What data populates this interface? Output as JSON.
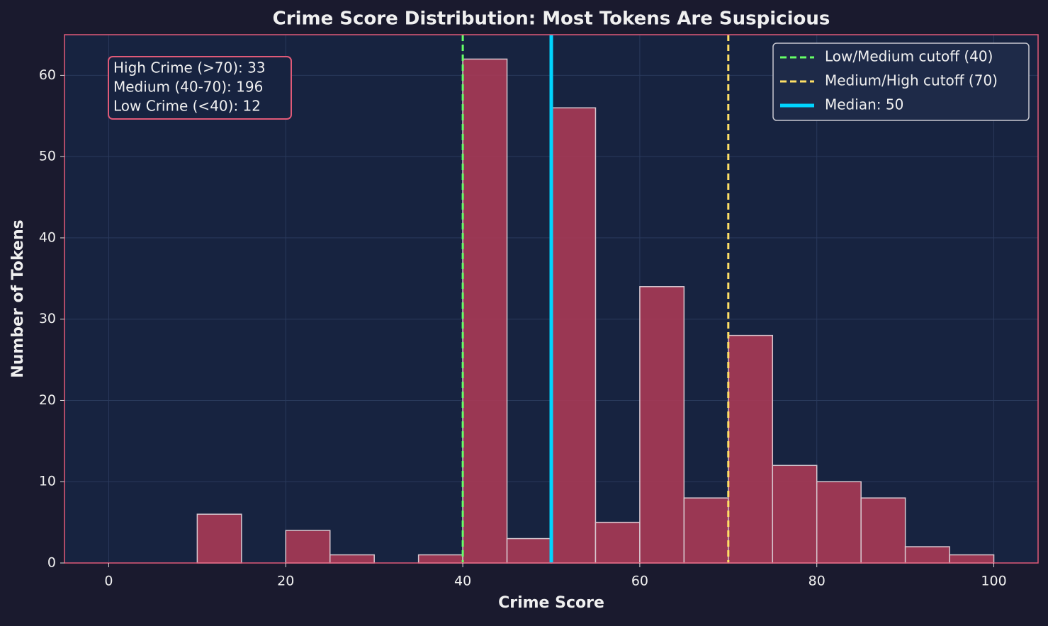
{
  "chart_data": {
    "type": "histogram",
    "title": "Crime Score Distribution: Most Tokens Are Suspicious",
    "x_label": "Crime Score",
    "y_label": "Number of Tokens",
    "bins": [
      0,
      5,
      10,
      15,
      20,
      25,
      30,
      35,
      40,
      45,
      50,
      55,
      60,
      65,
      70,
      75,
      80,
      85,
      90,
      95,
      100
    ],
    "counts": [
      0,
      0,
      6,
      0,
      4,
      1,
      0,
      1,
      62,
      3,
      56,
      5,
      34,
      8,
      28,
      12,
      10,
      8,
      2,
      1
    ],
    "color": "#a83a55",
    "edge_color": "#d8c8d0",
    "xlim": [
      -5,
      105
    ],
    "xticks": [
      0,
      20,
      40,
      60,
      80,
      100
    ],
    "ylim": [
      0,
      65
    ],
    "yticks": [
      0,
      10,
      20,
      30,
      40,
      50,
      60
    ],
    "grid": true,
    "legend_position": "upper right",
    "reference_lines": [
      {
        "name": "Low/Medium cutoff (40)",
        "value": 40,
        "color": "#66ff66",
        "style": "dashed"
      },
      {
        "name": "Medium/High cutoff (70)",
        "value": 70,
        "color": "#ffe066",
        "style": "dashed"
      },
      {
        "name": "Median: 50",
        "value": 50,
        "color": "#00d4ff",
        "style": "solid"
      }
    ],
    "annotation": [
      "High Crime (>70): 33",
      "Medium (40-70): 196",
      "Low Crime (<40): 12"
    ]
  }
}
